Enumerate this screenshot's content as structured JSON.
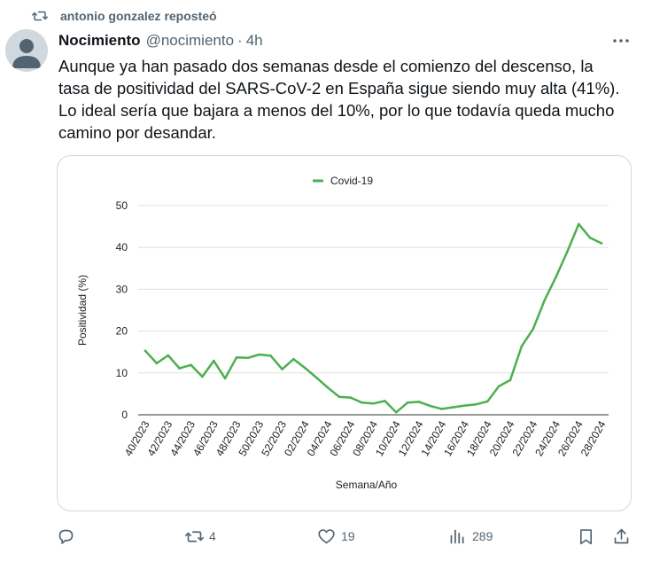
{
  "repost": {
    "text": "antonio gonzalez reposteó"
  },
  "author": {
    "name": "Nocimiento",
    "handle": "@nocimiento",
    "separator": "·",
    "time": "4h"
  },
  "tweet": {
    "text": "Aunque ya han pasado dos semanas desde el comienzo del descenso, la tasa de positividad del SARS-CoV-2 en España sigue siendo muy alta (41%). Lo ideal sería que bajara a menos del 10%, por lo que todavía queda mucho camino por desandar."
  },
  "icons": [
    "repost-icon",
    "more-icon",
    "reply-icon",
    "retweet-icon",
    "like-icon",
    "views-icon",
    "bookmark-icon",
    "share-icon"
  ],
  "colors": {
    "series": "#4caf50",
    "text_secondary": "#536471",
    "border": "#cfd9de"
  },
  "actions": {
    "reply": "",
    "retweets": "4",
    "likes": "19",
    "views": "289"
  },
  "chart_data": {
    "type": "line",
    "title": "",
    "xlabel": "Semana/Año",
    "ylabel": "Positividad (%)",
    "ylim": [
      0,
      50
    ],
    "yticks": [
      0,
      10,
      20,
      30,
      40,
      50
    ],
    "grid": true,
    "legend": "top-center",
    "xtick_labels": [
      "40/2023",
      "42/2023",
      "44/2023",
      "46/2023",
      "48/2023",
      "50/2023",
      "52/2023",
      "02/2024",
      "04/2024",
      "06/2024",
      "08/2024",
      "10/2024",
      "12/2024",
      "14/2024",
      "16/2024",
      "18/2024",
      "20/2024",
      "22/2024",
      "24/2024",
      "26/2024",
      "28/2024"
    ],
    "x": [
      "40/2023",
      "41/2023",
      "42/2023",
      "43/2023",
      "44/2023",
      "45/2023",
      "46/2023",
      "47/2023",
      "48/2023",
      "49/2023",
      "50/2023",
      "51/2023",
      "52/2023",
      "01/2024",
      "02/2024",
      "03/2024",
      "04/2024",
      "05/2024",
      "06/2024",
      "07/2024",
      "08/2024",
      "09/2024",
      "10/2024",
      "11/2024",
      "12/2024",
      "13/2024",
      "14/2024",
      "15/2024",
      "16/2024",
      "17/2024",
      "18/2024",
      "19/2024",
      "20/2024",
      "21/2024",
      "22/2024",
      "23/2024",
      "24/2024",
      "25/2024",
      "26/2024",
      "27/2024",
      "28/2024"
    ],
    "series": [
      {
        "name": "Covid-19",
        "values": [
          15.3,
          12.3,
          14.2,
          11.1,
          11.9,
          9.1,
          12.9,
          8.7,
          13.7,
          13.6,
          14.4,
          14.1,
          10.9,
          13.3,
          11.2,
          8.9,
          6.5,
          4.3,
          4.1,
          2.9,
          2.7,
          3.3,
          0.6,
          2.9,
          3.1,
          2.1,
          1.4,
          1.8,
          2.2,
          2.5,
          3.2,
          6.8,
          8.3,
          16.4,
          20.5,
          27.3,
          32.9,
          39.0,
          45.6,
          42.3,
          41.0
        ]
      }
    ]
  }
}
